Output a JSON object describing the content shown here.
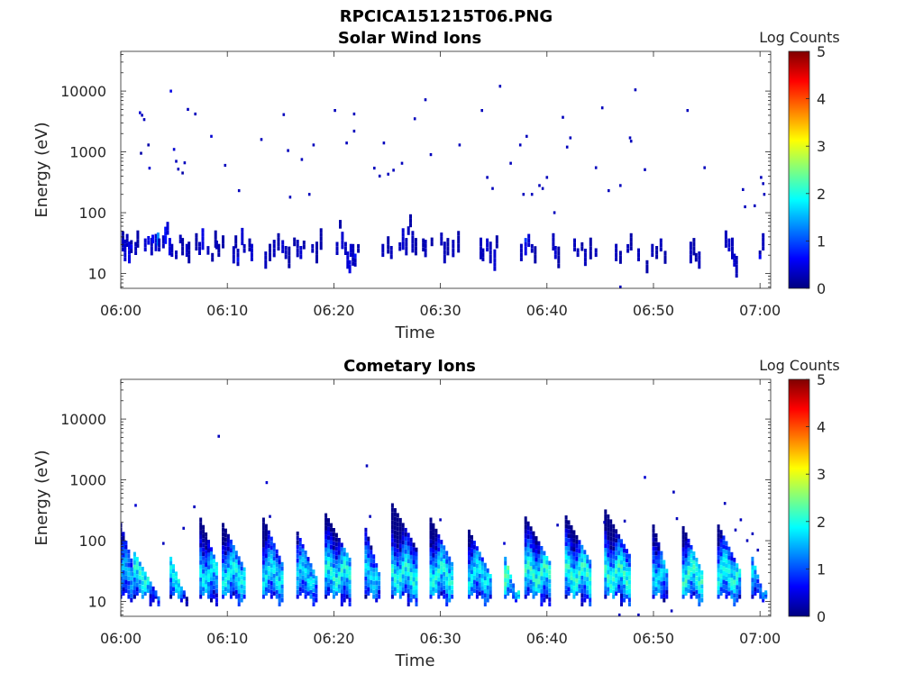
{
  "figure_title": "RPCICA151215T06.PNG",
  "colormap": [
    "#00007f",
    "#0000ff",
    "#007fff",
    "#00ffff",
    "#7fff7f",
    "#ffff00",
    "#ff7f00",
    "#ff0000",
    "#7f0000"
  ],
  "chart_data": [
    {
      "type": "heatmap",
      "title": "Solar Wind Ions",
      "xlabel": "Time",
      "ylabel": "Energy (eV)",
      "x_range": [
        "06:00",
        "07:01"
      ],
      "x_ticks": [
        "06:00",
        "06:10",
        "06:20",
        "06:30",
        "06:40",
        "06:50",
        "07:00"
      ],
      "y_scale": "log",
      "y_range": [
        5.7,
        45000
      ],
      "y_ticks": [
        "10",
        "100",
        "1000",
        "10000"
      ],
      "colorbar": {
        "label": "Log Counts",
        "range": [
          0,
          5
        ],
        "ticks": [
          "0",
          "1",
          "2",
          "3",
          "4",
          "5"
        ]
      },
      "grid": false,
      "cells": [
        [
          0.2,
          42,
          0.2
        ],
        [
          0.2,
          32,
          0.3
        ],
        [
          0.4,
          26,
          0.4
        ],
        [
          0.6,
          38,
          0.3
        ],
        [
          0.8,
          24,
          0.5
        ],
        [
          1.0,
          30,
          0.2
        ],
        [
          1.4,
          28,
          0.3
        ],
        [
          1.6,
          40,
          0.2
        ],
        [
          2.3,
          32,
          0.4
        ],
        [
          2.6,
          38,
          0.5
        ],
        [
          2.9,
          30,
          0.3
        ],
        [
          3.0,
          40,
          0.6
        ],
        [
          3.3,
          35,
          0.4
        ],
        [
          3.5,
          40,
          1.3
        ],
        [
          3.6,
          32,
          0.3
        ],
        [
          4.0,
          36,
          0.3
        ],
        [
          4.2,
          46,
          0.7
        ],
        [
          4.4,
          60,
          0.4
        ],
        [
          4.6,
          30,
          0.5
        ],
        [
          4.8,
          26,
          0.3
        ],
        [
          5.2,
          22,
          0.3
        ],
        [
          5.6,
          40,
          0.3
        ],
        [
          5.8,
          30,
          0.2
        ],
        [
          6.2,
          26,
          0.4
        ],
        [
          6.4,
          24,
          0.2
        ],
        [
          7.1,
          36,
          0.2
        ],
        [
          7.4,
          28,
          0.3
        ],
        [
          7.7,
          40,
          0.5
        ],
        [
          8.2,
          26,
          0.3
        ],
        [
          8.6,
          20,
          0.2
        ],
        [
          8.9,
          40,
          0.2
        ],
        [
          9.0,
          32,
          0.3
        ],
        [
          9.2,
          26,
          0.2
        ],
        [
          9.6,
          36,
          0.2
        ],
        [
          10.6,
          22,
          0.3
        ],
        [
          10.8,
          36,
          0.2
        ],
        [
          11.0,
          20,
          0.3
        ],
        [
          11.4,
          44,
          0.4
        ],
        [
          11.6,
          28,
          0.3
        ],
        [
          12.1,
          32,
          0.2
        ],
        [
          12.3,
          24,
          0.4
        ],
        [
          13.6,
          18,
          0.3
        ],
        [
          14.0,
          24,
          0.2
        ],
        [
          14.4,
          28,
          0.3
        ],
        [
          14.8,
          36,
          0.2
        ],
        [
          15.2,
          30,
          0.4
        ],
        [
          15.5,
          24,
          0.3
        ],
        [
          15.8,
          20,
          0.2
        ],
        [
          16.3,
          36,
          0.2
        ],
        [
          16.6,
          28,
          0.3
        ],
        [
          16.9,
          24,
          0.4
        ],
        [
          17.2,
          32,
          0.2
        ],
        [
          18.0,
          28,
          0.3
        ],
        [
          18.4,
          24,
          0.2
        ],
        [
          18.8,
          40,
          0.2
        ],
        [
          20.3,
          28,
          0.3
        ],
        [
          20.6,
          70,
          0.2
        ],
        [
          20.8,
          38,
          0.4
        ],
        [
          21.1,
          28,
          0.3
        ],
        [
          21.3,
          18,
          0.4
        ],
        [
          21.5,
          14,
          0.5
        ],
        [
          21.6,
          26,
          0.4
        ],
        [
          21.8,
          22,
          0.3
        ],
        [
          22.0,
          18,
          0.3
        ],
        [
          22.3,
          28,
          0.2
        ],
        [
          24.6,
          26,
          0.3
        ],
        [
          25.1,
          32,
          0.2
        ],
        [
          25.4,
          24,
          0.3
        ],
        [
          26.2,
          30,
          0.3
        ],
        [
          26.5,
          40,
          0.4
        ],
        [
          26.8,
          30,
          0.3
        ],
        [
          27.0,
          55,
          0.3
        ],
        [
          27.2,
          80,
          0.2
        ],
        [
          27.4,
          36,
          0.3
        ],
        [
          27.7,
          30,
          0.2
        ],
        [
          28.4,
          32,
          0.2
        ],
        [
          28.6,
          28,
          0.3
        ],
        [
          29.2,
          36,
          0.2
        ],
        [
          30.1,
          40,
          0.3
        ],
        [
          30.4,
          24,
          0.3
        ],
        [
          30.7,
          30,
          0.2
        ],
        [
          31.2,
          28,
          0.3
        ],
        [
          31.7,
          36,
          0.2
        ],
        [
          33.8,
          28,
          0.3
        ],
        [
          34.0,
          22,
          0.3
        ],
        [
          34.4,
          32,
          0.4
        ],
        [
          34.7,
          24,
          0.3
        ],
        [
          35.1,
          18,
          0.4
        ],
        [
          35.3,
          36,
          0.2
        ],
        [
          37.6,
          24,
          0.3
        ],
        [
          38.0,
          30,
          0.5
        ],
        [
          38.3,
          38,
          0.4
        ],
        [
          38.6,
          28,
          0.3
        ],
        [
          38.9,
          22,
          0.2
        ],
        [
          40.6,
          36,
          0.3
        ],
        [
          40.8,
          24,
          0.4
        ],
        [
          41.1,
          20,
          0.2
        ],
        [
          42.6,
          32,
          0.3
        ],
        [
          42.9,
          24,
          0.3
        ],
        [
          43.3,
          30,
          0.2
        ],
        [
          43.6,
          20,
          0.3
        ],
        [
          44.1,
          28,
          0.2
        ],
        [
          44.6,
          24,
          0.3
        ],
        [
          46.5,
          24,
          0.3
        ],
        [
          46.9,
          20,
          0.2
        ],
        [
          47.6,
          28,
          0.3
        ],
        [
          47.9,
          36,
          0.2
        ],
        [
          48.6,
          22,
          0.3
        ],
        [
          49.4,
          14,
          0.2
        ],
        [
          49.9,
          26,
          0.3
        ],
        [
          50.3,
          24,
          0.2
        ],
        [
          50.7,
          32,
          0.3
        ],
        [
          51.1,
          20,
          0.2
        ],
        [
          53.5,
          24,
          0.3
        ],
        [
          53.8,
          30,
          0.2
        ],
        [
          54.0,
          20,
          0.2
        ],
        [
          54.3,
          18,
          0.3
        ],
        [
          56.8,
          40,
          0.3
        ],
        [
          57.1,
          32,
          0.4
        ],
        [
          57.4,
          28,
          0.3
        ],
        [
          57.6,
          18,
          0.4
        ],
        [
          57.8,
          14,
          0.3
        ],
        [
          60.0,
          22,
          0.2
        ],
        [
          60.3,
          36,
          0.3
        ]
      ],
      "points": [
        [
          1.8,
          4400,
          0.4
        ],
        [
          2.0,
          4000,
          0.3
        ],
        [
          2.2,
          3400,
          0.3
        ],
        [
          1.9,
          950,
          0.2
        ],
        [
          2.6,
          1300,
          0.2
        ],
        [
          2.7,
          540,
          0.4
        ],
        [
          4.7,
          10000,
          0.5
        ],
        [
          5.0,
          1100,
          0.4
        ],
        [
          5.2,
          700,
          0.3
        ],
        [
          5.4,
          520,
          0.3
        ],
        [
          5.8,
          450,
          0.2
        ],
        [
          6.0,
          660,
          0.3
        ],
        [
          6.3,
          5000,
          0.3
        ],
        [
          7.0,
          4200,
          0.3
        ],
        [
          8.5,
          1800,
          0.4
        ],
        [
          9.8,
          600,
          0.3
        ],
        [
          11.1,
          230,
          0.3
        ],
        [
          13.2,
          1600,
          0.3
        ],
        [
          15.3,
          4100,
          0.3
        ],
        [
          15.7,
          1050,
          0.3
        ],
        [
          15.9,
          180,
          0.3
        ],
        [
          17.0,
          750,
          0.3
        ],
        [
          17.7,
          200,
          0.3
        ],
        [
          18.1,
          1300,
          0.3
        ],
        [
          20.1,
          4800,
          0.3
        ],
        [
          21.2,
          1400,
          0.3
        ],
        [
          21.9,
          4200,
          0.3
        ],
        [
          21.9,
          2200,
          0.3
        ],
        [
          23.8,
          540,
          0.3
        ],
        [
          24.3,
          400,
          0.3
        ],
        [
          24.7,
          1400,
          0.3
        ],
        [
          25.1,
          430,
          0.3
        ],
        [
          25.6,
          500,
          0.3
        ],
        [
          26.4,
          650,
          0.3
        ],
        [
          27.6,
          3500,
          0.3
        ],
        [
          28.6,
          7200,
          0.3
        ],
        [
          29.1,
          900,
          0.3
        ],
        [
          31.8,
          1300,
          0.3
        ],
        [
          33.9,
          4800,
          0.3
        ],
        [
          34.4,
          380,
          0.3
        ],
        [
          34.9,
          250,
          0.3
        ],
        [
          35.6,
          12000,
          0.3
        ],
        [
          36.6,
          650,
          0.3
        ],
        [
          37.5,
          1300,
          0.3
        ],
        [
          37.8,
          200,
          0.3
        ],
        [
          38.1,
          1800,
          0.3
        ],
        [
          38.6,
          200,
          0.3
        ],
        [
          39.3,
          280,
          0.3
        ],
        [
          39.6,
          250,
          0.3
        ],
        [
          40.0,
          380,
          0.3
        ],
        [
          41.5,
          3700,
          0.3
        ],
        [
          41.9,
          1200,
          0.3
        ],
        [
          42.2,
          1700,
          0.3
        ],
        [
          44.6,
          550,
          0.3
        ],
        [
          45.2,
          5300,
          0.3
        ],
        [
          45.8,
          230,
          0.3
        ],
        [
          46.9,
          280,
          0.3
        ],
        [
          47.8,
          1700,
          0.3
        ],
        [
          47.9,
          1500,
          0.3
        ],
        [
          48.3,
          10500,
          0.3
        ],
        [
          49.2,
          510,
          0.3
        ],
        [
          53.2,
          4800,
          0.3
        ],
        [
          54.8,
          550,
          0.3
        ],
        [
          58.4,
          240,
          0.3
        ],
        [
          58.6,
          125,
          0.3
        ],
        [
          59.5,
          130,
          0.3
        ],
        [
          60.1,
          380,
          0.3
        ],
        [
          60.3,
          300,
          0.3
        ],
        [
          60.4,
          200,
          0.3
        ],
        [
          40.7,
          100,
          0.3
        ],
        [
          46.9,
          6,
          0.3
        ]
      ]
    },
    {
      "type": "heatmap",
      "title": "Cometary Ions",
      "xlabel": "Time",
      "ylabel": "Energy (eV)",
      "x_range": [
        "06:00",
        "07:01"
      ],
      "x_ticks": [
        "06:00",
        "06:10",
        "06:20",
        "06:30",
        "06:40",
        "06:50",
        "07:00"
      ],
      "y_scale": "log",
      "y_range": [
        5.7,
        45000
      ],
      "y_ticks": [
        "10",
        "100",
        "1000",
        "10000"
      ],
      "colorbar": {
        "label": "Log Counts",
        "range": [
          0,
          5
        ],
        "ticks": [
          "0",
          "1",
          "2",
          "3",
          "4",
          "5"
        ]
      },
      "grid": false,
      "bursts": [
        {
          "t": 0.8,
          "top": 180,
          "peak": 1.7,
          "w": 1.6
        },
        {
          "t": 2.5,
          "top": 60,
          "peak": 2.2,
          "w": 2.4
        },
        {
          "t": 5.6,
          "top": 50,
          "peak": 2.1,
          "w": 1.8
        },
        {
          "t": 8.4,
          "top": 220,
          "peak": 2.0,
          "w": 1.8
        },
        {
          "t": 10.7,
          "top": 180,
          "peak": 2.1,
          "w": 2.2
        },
        {
          "t": 14.4,
          "top": 220,
          "peak": 2.0,
          "w": 2.0
        },
        {
          "t": 17.6,
          "top": 130,
          "peak": 1.9,
          "w": 2.0
        },
        {
          "t": 20.5,
          "top": 260,
          "peak": 2.2,
          "w": 2.5
        },
        {
          "t": 23.8,
          "top": 150,
          "peak": 1.9,
          "w": 1.6
        },
        {
          "t": 26.8,
          "top": 380,
          "peak": 2.2,
          "w": 2.6
        },
        {
          "t": 30.2,
          "top": 220,
          "peak": 2.2,
          "w": 2.2
        },
        {
          "t": 33.8,
          "top": 140,
          "peak": 2.0,
          "w": 2.2
        },
        {
          "t": 36.9,
          "top": 50,
          "peak": 2.6,
          "w": 1.6
        },
        {
          "t": 39.3,
          "top": 230,
          "peak": 2.3,
          "w": 2.6
        },
        {
          "t": 43.0,
          "top": 240,
          "peak": 2.3,
          "w": 2.4
        },
        {
          "t": 46.8,
          "top": 300,
          "peak": 2.3,
          "w": 2.6
        },
        {
          "t": 50.8,
          "top": 170,
          "peak": 1.9,
          "w": 1.6
        },
        {
          "t": 53.8,
          "top": 160,
          "peak": 2.3,
          "w": 2.0
        },
        {
          "t": 57.2,
          "top": 170,
          "peak": 2.2,
          "w": 2.2
        },
        {
          "t": 60.0,
          "top": 50,
          "peak": 1.9,
          "w": 1.4
        }
      ],
      "points": [
        [
          1.4,
          380,
          0.4
        ],
        [
          4.0,
          90,
          0.3
        ],
        [
          5.9,
          160,
          0.3
        ],
        [
          6.9,
          360,
          0.3
        ],
        [
          9.2,
          5200,
          0.3
        ],
        [
          13.7,
          900,
          0.4
        ],
        [
          14.0,
          250,
          0.3
        ],
        [
          23.1,
          1700,
          0.3
        ],
        [
          23.4,
          250,
          0.3
        ],
        [
          30.0,
          220,
          0.3
        ],
        [
          49.2,
          1100,
          0.4
        ],
        [
          51.9,
          630,
          0.3
        ],
        [
          56.7,
          410,
          0.3
        ],
        [
          58.8,
          100,
          0.3
        ],
        [
          59.3,
          130,
          0.3
        ],
        [
          59.8,
          70,
          0.3
        ],
        [
          36.0,
          90,
          0.4
        ],
        [
          41.0,
          180,
          0.3
        ],
        [
          45.4,
          200,
          0.3
        ],
        [
          47.3,
          210,
          0.3
        ],
        [
          52.2,
          230,
          0.3
        ],
        [
          57.7,
          150,
          0.3
        ],
        [
          58.2,
          220,
          0.3
        ],
        [
          46.8,
          6,
          0.3
        ],
        [
          48.6,
          6,
          0.3
        ],
        [
          51.7,
          7,
          0.3
        ]
      ]
    }
  ]
}
